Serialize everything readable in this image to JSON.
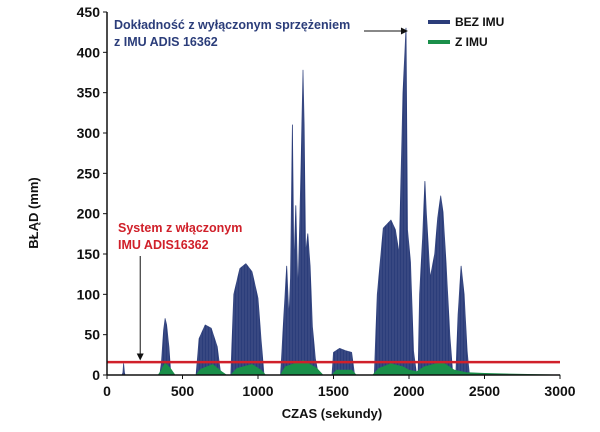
{
  "chart_data": {
    "type": "area",
    "title": "",
    "xlabel": "CZAS (sekundy)",
    "ylabel": "BŁĄD (mm)",
    "xlim": [
      0,
      3000
    ],
    "ylim": [
      0,
      450
    ],
    "xticks": [
      0,
      500,
      1000,
      1500,
      2000,
      2500,
      3000
    ],
    "yticks": [
      0,
      50,
      100,
      150,
      200,
      250,
      300,
      350,
      400,
      450
    ],
    "series": [
      {
        "name": "BEZ IMU",
        "color": "#2b3d7a",
        "envelope": [
          [
            100,
            0
          ],
          [
            105,
            3
          ],
          [
            110,
            14
          ],
          [
            115,
            3
          ],
          [
            120,
            0
          ],
          [
            350,
            0
          ],
          [
            360,
            15
          ],
          [
            375,
            55
          ],
          [
            385,
            70
          ],
          [
            395,
            62
          ],
          [
            410,
            35
          ],
          [
            420,
            8
          ],
          [
            440,
            0
          ],
          [
            590,
            0
          ],
          [
            610,
            45
          ],
          [
            650,
            62
          ],
          [
            690,
            58
          ],
          [
            730,
            35
          ],
          [
            750,
            5
          ],
          [
            765,
            0
          ],
          [
            820,
            0
          ],
          [
            840,
            100
          ],
          [
            880,
            132
          ],
          [
            920,
            138
          ],
          [
            960,
            128
          ],
          [
            1000,
            95
          ],
          [
            1020,
            45
          ],
          [
            1040,
            0
          ],
          [
            1150,
            0
          ],
          [
            1170,
            70
          ],
          [
            1190,
            135
          ],
          [
            1205,
            70
          ],
          [
            1215,
            120
          ],
          [
            1228,
            310
          ],
          [
            1238,
            130
          ],
          [
            1250,
            210
          ],
          [
            1265,
            100
          ],
          [
            1285,
            255
          ],
          [
            1298,
            378
          ],
          [
            1305,
            310
          ],
          [
            1315,
            150
          ],
          [
            1330,
            175
          ],
          [
            1345,
            135
          ],
          [
            1360,
            60
          ],
          [
            1380,
            20
          ],
          [
            1400,
            0
          ],
          [
            1490,
            0
          ],
          [
            1500,
            28
          ],
          [
            1540,
            33
          ],
          [
            1580,
            30
          ],
          [
            1620,
            28
          ],
          [
            1640,
            0
          ],
          [
            1770,
            0
          ],
          [
            1790,
            100
          ],
          [
            1830,
            182
          ],
          [
            1880,
            192
          ],
          [
            1910,
            180
          ],
          [
            1935,
            150
          ],
          [
            1960,
            350
          ],
          [
            1980,
            430
          ],
          [
            1990,
            180
          ],
          [
            2010,
            140
          ],
          [
            2030,
            30
          ],
          [
            2050,
            0
          ],
          [
            2060,
            0
          ],
          [
            2070,
            100
          ],
          [
            2090,
            170
          ],
          [
            2105,
            240
          ],
          [
            2115,
            200
          ],
          [
            2140,
            120
          ],
          [
            2170,
            150
          ],
          [
            2190,
            195
          ],
          [
            2210,
            222
          ],
          [
            2225,
            202
          ],
          [
            2245,
            140
          ],
          [
            2270,
            50
          ],
          [
            2290,
            0
          ],
          [
            2310,
            0
          ],
          [
            2325,
            75
          ],
          [
            2345,
            135
          ],
          [
            2365,
            100
          ],
          [
            2385,
            30
          ],
          [
            2400,
            0
          ],
          [
            3000,
            0
          ]
        ]
      },
      {
        "name": "Z IMU",
        "color": "#1a8f4a",
        "envelope": [
          [
            0,
            0
          ],
          [
            340,
            0
          ],
          [
            360,
            6
          ],
          [
            385,
            15
          ],
          [
            420,
            8
          ],
          [
            450,
            0
          ],
          [
            590,
            0
          ],
          [
            620,
            7
          ],
          [
            700,
            13
          ],
          [
            760,
            4
          ],
          [
            790,
            0
          ],
          [
            820,
            0
          ],
          [
            860,
            8
          ],
          [
            960,
            13
          ],
          [
            1020,
            6
          ],
          [
            1050,
            0
          ],
          [
            1150,
            0
          ],
          [
            1180,
            10
          ],
          [
            1300,
            18
          ],
          [
            1390,
            8
          ],
          [
            1430,
            0
          ],
          [
            1490,
            0
          ],
          [
            1520,
            6
          ],
          [
            1620,
            6
          ],
          [
            1650,
            0
          ],
          [
            1760,
            0
          ],
          [
            1800,
            8
          ],
          [
            1880,
            14
          ],
          [
            1960,
            10
          ],
          [
            2000,
            6
          ],
          [
            2050,
            4
          ],
          [
            2100,
            10
          ],
          [
            2220,
            16
          ],
          [
            2300,
            6
          ],
          [
            2380,
            3
          ],
          [
            2500,
            2
          ],
          [
            2700,
            1
          ],
          [
            3000,
            0
          ]
        ]
      }
    ],
    "threshold": {
      "value": 16,
      "color": "#d0202a"
    },
    "legend": {
      "position": "top-right",
      "entries": [
        "BEZ IMU",
        "Z IMU"
      ]
    },
    "annotations": {
      "top": {
        "lines": [
          "Dokładność z wyłączonym sprzężeniem",
          "z IMU ADIS 16362"
        ],
        "arrow_to": [
          1980,
          430
        ]
      },
      "bottom": {
        "lines": [
          "System z włączonym",
          "IMU ADIS16362"
        ],
        "arrow_to": [
          220,
          18
        ]
      }
    }
  }
}
